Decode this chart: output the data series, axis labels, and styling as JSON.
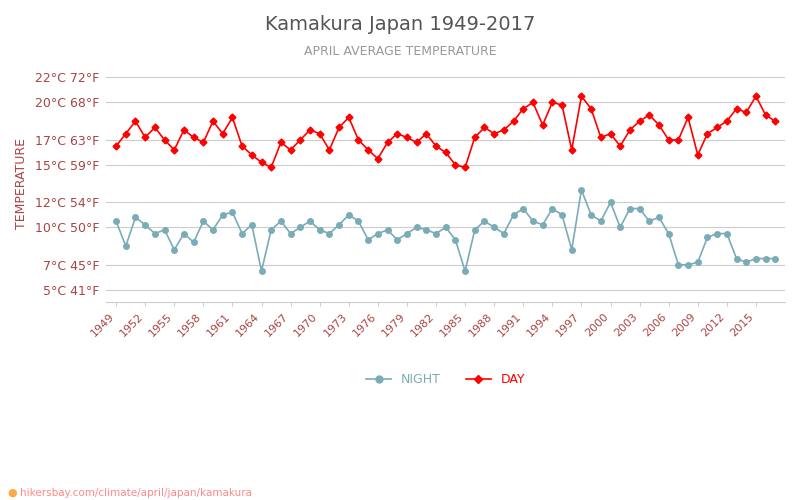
{
  "title": "Kamakura Japan 1949-2017",
  "subtitle": "APRIL AVERAGE TEMPERATURE",
  "ylabel": "TEMPERATURE",
  "xlabel_url": "hikersbay.com/climate/april/japan/kamakura",
  "years": [
    1949,
    1950,
    1951,
    1952,
    1953,
    1954,
    1955,
    1956,
    1957,
    1958,
    1959,
    1960,
    1961,
    1962,
    1963,
    1964,
    1965,
    1966,
    1967,
    1968,
    1969,
    1970,
    1971,
    1972,
    1973,
    1974,
    1975,
    1976,
    1977,
    1978,
    1979,
    1980,
    1981,
    1982,
    1983,
    1984,
    1985,
    1986,
    1987,
    1988,
    1989,
    1990,
    1991,
    1992,
    1993,
    1994,
    1995,
    1996,
    1997,
    1998,
    1999,
    2000,
    2001,
    2002,
    2003,
    2004,
    2005,
    2006,
    2007,
    2008,
    2009,
    2010,
    2011,
    2012,
    2013,
    2014,
    2015,
    2016,
    2017
  ],
  "day_temps": [
    16.5,
    17.5,
    18.5,
    17.2,
    18.0,
    17.0,
    16.2,
    17.8,
    17.2,
    16.8,
    18.5,
    17.5,
    18.8,
    16.5,
    15.8,
    15.2,
    14.8,
    16.8,
    16.2,
    17.0,
    17.8,
    17.5,
    16.2,
    18.0,
    18.8,
    17.0,
    16.2,
    15.5,
    16.8,
    17.5,
    17.2,
    16.8,
    17.5,
    16.5,
    16.0,
    15.0,
    14.8,
    17.2,
    18.0,
    17.5,
    17.8,
    18.5,
    19.5,
    20.0,
    18.2,
    20.0,
    19.8,
    16.2,
    20.5,
    19.5,
    17.2,
    17.5,
    16.5,
    17.8,
    18.5,
    19.0,
    18.2,
    17.0,
    17.0,
    18.8,
    15.8,
    17.5,
    18.0,
    18.5,
    19.5,
    19.2,
    20.5,
    19.0,
    18.5
  ],
  "night_temps": [
    10.5,
    8.5,
    10.8,
    10.2,
    9.5,
    9.8,
    8.2,
    9.5,
    8.8,
    10.5,
    9.8,
    11.0,
    11.2,
    9.5,
    10.2,
    6.5,
    9.8,
    10.5,
    9.5,
    10.0,
    10.5,
    9.8,
    9.5,
    10.2,
    11.0,
    10.5,
    9.0,
    9.5,
    9.8,
    9.0,
    9.5,
    10.0,
    9.8,
    9.5,
    10.0,
    9.0,
    6.5,
    9.8,
    10.5,
    10.0,
    9.5,
    11.0,
    11.5,
    10.5,
    10.2,
    11.5,
    11.0,
    8.2,
    13.0,
    11.0,
    10.5,
    12.0,
    10.0,
    11.5,
    11.5,
    10.5,
    10.8,
    9.5,
    7.0,
    7.0,
    7.2,
    9.2,
    9.5,
    9.5,
    7.5,
    7.2,
    7.5,
    7.5,
    7.5
  ],
  "yticks_c": [
    5,
    7,
    10,
    12,
    15,
    17,
    20,
    22
  ],
  "yticks_f": [
    41,
    45,
    50,
    54,
    59,
    63,
    68,
    72
  ],
  "xticks": [
    1949,
    1952,
    1955,
    1958,
    1961,
    1964,
    1967,
    1970,
    1973,
    1976,
    1979,
    1982,
    1985,
    1988,
    1991,
    1994,
    1997,
    2000,
    2003,
    2006,
    2009,
    2012,
    2015
  ],
  "ylim": [
    4,
    23
  ],
  "day_color": "#ff0000",
  "night_color": "#7aacb8",
  "grid_color": "#cccccc",
  "title_color": "#555555",
  "subtitle_color": "#999999",
  "label_color": "#aa4444",
  "background_color": "#ffffff",
  "legend_night_label": "NIGHT",
  "legend_day_label": "DAY",
  "url_color": "#ff8888",
  "url_dot_color": "#ffaa44"
}
